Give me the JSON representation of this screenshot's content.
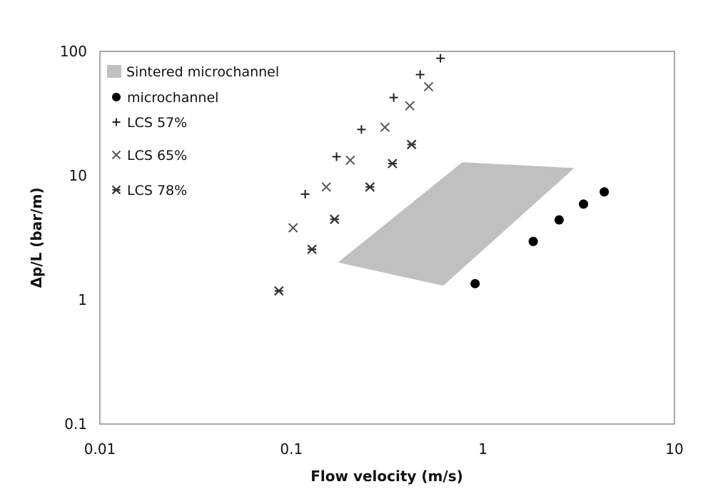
{
  "chart_data": {
    "type": "scatter",
    "title": "",
    "xlabel": "Flow velocity (m/s)",
    "ylabel": "Δp/L (bar/m)",
    "xscale": "log",
    "yscale": "log",
    "xlim": [
      0.01,
      10
    ],
    "ylim": [
      0.1,
      100
    ],
    "x_ticks": [
      "0.01",
      "0.1",
      "1",
      "10"
    ],
    "y_ticks": [
      "0.1",
      "1",
      "10",
      "100"
    ],
    "grid": false,
    "legend_position": "top-left",
    "series": [
      {
        "name": "Sintered microchannel",
        "kind": "region",
        "color": "#c0c0c0",
        "points": [
          [
            0.175,
            2.0
          ],
          [
            0.78,
            12.8
          ],
          [
            3.0,
            11.5
          ],
          [
            0.62,
            1.3
          ]
        ]
      },
      {
        "name": "microchannel",
        "marker": "circle",
        "color": "#000000",
        "points": [
          [
            0.91,
            1.35
          ],
          [
            1.83,
            2.95
          ],
          [
            2.5,
            4.4
          ],
          [
            3.35,
            5.9
          ],
          [
            4.3,
            7.4
          ]
        ]
      },
      {
        "name": "LCS 57%",
        "marker": "plus",
        "color": "#222222",
        "points": [
          [
            0.118,
            7.1
          ],
          [
            0.172,
            14.2
          ],
          [
            0.232,
            23.5
          ],
          [
            0.342,
            42.5
          ],
          [
            0.47,
            65.0
          ],
          [
            0.6,
            88.0
          ]
        ]
      },
      {
        "name": "LCS 65%",
        "marker": "x",
        "color": "#555555",
        "points": [
          [
            0.102,
            3.8
          ],
          [
            0.152,
            8.1
          ],
          [
            0.203,
            13.3
          ],
          [
            0.308,
            24.5
          ],
          [
            0.415,
            36.5
          ],
          [
            0.52,
            52.0
          ]
        ]
      },
      {
        "name": "LCS 78%",
        "marker": "asterisk",
        "color": "#333333",
        "points": [
          [
            0.086,
            1.18
          ],
          [
            0.128,
            2.55
          ],
          [
            0.168,
            4.45
          ],
          [
            0.257,
            8.1
          ],
          [
            0.337,
            12.5
          ],
          [
            0.424,
            17.8
          ]
        ]
      }
    ]
  }
}
